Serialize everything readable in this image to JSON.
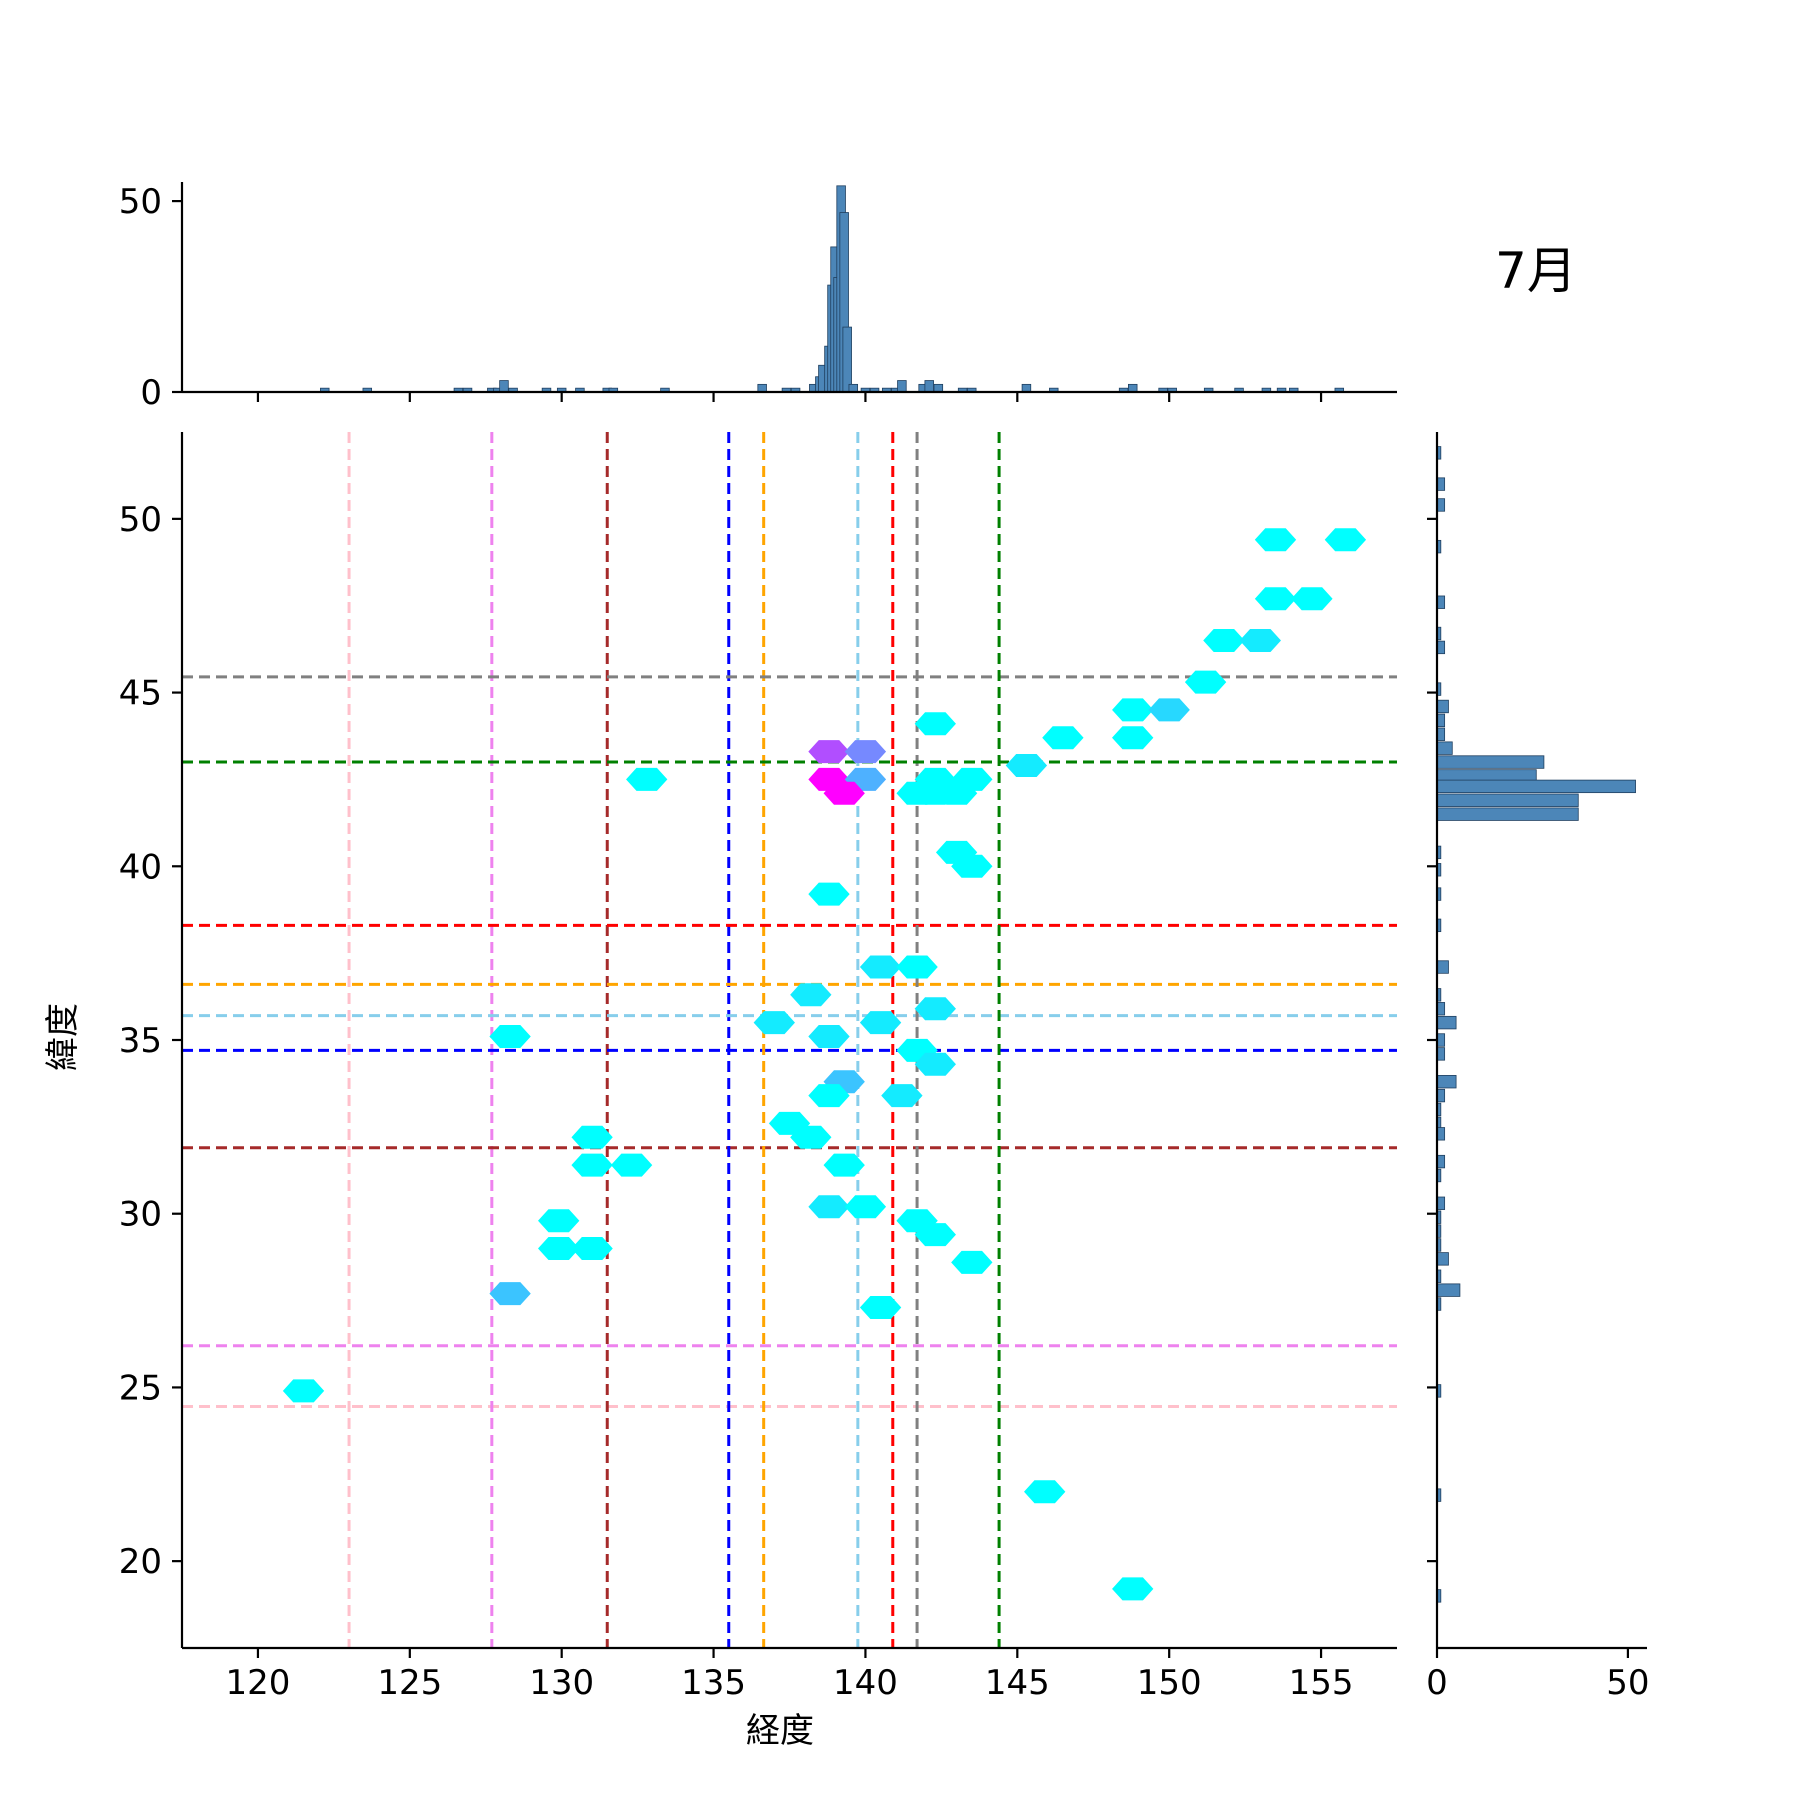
{
  "title": "7月",
  "chart_data": {
    "type": "hexbin-jointplot",
    "xlabel": "経度",
    "ylabel": "緯度",
    "xlim": [
      117.5,
      157.5
    ],
    "ylim": [
      17.5,
      52.5
    ],
    "xticks": [
      120,
      125,
      130,
      135,
      140,
      145,
      150,
      155
    ],
    "yticks": [
      20,
      25,
      30,
      35,
      40,
      45,
      50
    ],
    "grid": false,
    "reference_lines": [
      {
        "color": "pink",
        "lon": 123.0,
        "lat": 24.45
      },
      {
        "color": "violet",
        "lon": 127.7,
        "lat": 26.2
      },
      {
        "color": "brown",
        "lon": 131.5,
        "lat": 31.9
      },
      {
        "color": "blue",
        "lon": 135.5,
        "lat": 34.7
      },
      {
        "color": "orange",
        "lon": 136.65,
        "lat": 36.6
      },
      {
        "color": "skyblue",
        "lon": 139.75,
        "lat": 35.7
      },
      {
        "color": "red",
        "lon": 140.9,
        "lat": 38.3
      },
      {
        "color": "gray",
        "lon": 141.7,
        "lat": 45.45
      },
      {
        "color": "green",
        "lon": 144.4,
        "lat": 43.0
      }
    ],
    "hexbins": [
      {
        "x": 153.5,
        "y": 49.4,
        "count": 1
      },
      {
        "x": 155.8,
        "y": 49.4,
        "count": 1
      },
      {
        "x": 153.5,
        "y": 47.7,
        "count": 1
      },
      {
        "x": 154.7,
        "y": 47.7,
        "count": 1
      },
      {
        "x": 151.8,
        "y": 46.5,
        "count": 1
      },
      {
        "x": 153.0,
        "y": 46.5,
        "count": 2
      },
      {
        "x": 151.2,
        "y": 45.3,
        "count": 1
      },
      {
        "x": 148.8,
        "y": 44.5,
        "count": 1
      },
      {
        "x": 150.0,
        "y": 44.5,
        "count": 3
      },
      {
        "x": 142.3,
        "y": 44.1,
        "count": 1
      },
      {
        "x": 146.5,
        "y": 43.7,
        "count": 1
      },
      {
        "x": 148.8,
        "y": 43.7,
        "count": 1
      },
      {
        "x": 145.3,
        "y": 42.9,
        "count": 2
      },
      {
        "x": 138.8,
        "y": 43.3,
        "count": 10
      },
      {
        "x": 140.0,
        "y": 43.3,
        "count": 7
      },
      {
        "x": 132.8,
        "y": 42.5,
        "count": 1
      },
      {
        "x": 138.8,
        "y": 42.5,
        "count": 14
      },
      {
        "x": 140.0,
        "y": 42.5,
        "count": 5
      },
      {
        "x": 139.3,
        "y": 42.1,
        "count": 14
      },
      {
        "x": 141.7,
        "y": 42.1,
        "count": 1
      },
      {
        "x": 142.3,
        "y": 42.5,
        "count": 1
      },
      {
        "x": 143.5,
        "y": 42.5,
        "count": 1
      },
      {
        "x": 142.3,
        "y": 42.1,
        "count": 1
      },
      {
        "x": 143.0,
        "y": 42.1,
        "count": 1
      },
      {
        "x": 143.0,
        "y": 40.4,
        "count": 1
      },
      {
        "x": 143.5,
        "y": 40.0,
        "count": 1
      },
      {
        "x": 138.8,
        "y": 39.2,
        "count": 1
      },
      {
        "x": 140.5,
        "y": 37.1,
        "count": 2
      },
      {
        "x": 141.7,
        "y": 37.1,
        "count": 1
      },
      {
        "x": 138.2,
        "y": 36.3,
        "count": 2
      },
      {
        "x": 142.3,
        "y": 35.9,
        "count": 2
      },
      {
        "x": 137.0,
        "y": 35.5,
        "count": 2
      },
      {
        "x": 140.5,
        "y": 35.5,
        "count": 2
      },
      {
        "x": 128.3,
        "y": 35.1,
        "count": 1
      },
      {
        "x": 138.8,
        "y": 35.1,
        "count": 2
      },
      {
        "x": 141.7,
        "y": 34.7,
        "count": 1
      },
      {
        "x": 142.3,
        "y": 34.3,
        "count": 2
      },
      {
        "x": 139.3,
        "y": 33.8,
        "count": 4
      },
      {
        "x": 138.8,
        "y": 33.4,
        "count": 1
      },
      {
        "x": 141.2,
        "y": 33.4,
        "count": 2
      },
      {
        "x": 137.5,
        "y": 32.6,
        "count": 1
      },
      {
        "x": 138.2,
        "y": 32.2,
        "count": 1
      },
      {
        "x": 131.0,
        "y": 32.2,
        "count": 1
      },
      {
        "x": 131.0,
        "y": 31.4,
        "count": 1
      },
      {
        "x": 132.3,
        "y": 31.4,
        "count": 1
      },
      {
        "x": 139.3,
        "y": 31.4,
        "count": 1
      },
      {
        "x": 138.8,
        "y": 30.2,
        "count": 2
      },
      {
        "x": 140.0,
        "y": 30.2,
        "count": 1
      },
      {
        "x": 129.9,
        "y": 29.8,
        "count": 1
      },
      {
        "x": 141.7,
        "y": 29.8,
        "count": 1
      },
      {
        "x": 129.9,
        "y": 29.0,
        "count": 1
      },
      {
        "x": 131.0,
        "y": 29.0,
        "count": 1
      },
      {
        "x": 142.3,
        "y": 29.4,
        "count": 1
      },
      {
        "x": 143.5,
        "y": 28.6,
        "count": 1
      },
      {
        "x": 128.3,
        "y": 27.7,
        "count": 4
      },
      {
        "x": 140.5,
        "y": 27.3,
        "count": 1
      },
      {
        "x": 121.5,
        "y": 24.9,
        "count": 1
      },
      {
        "x": 145.9,
        "y": 22.0,
        "count": 1
      },
      {
        "x": 148.8,
        "y": 19.2,
        "count": 1
      }
    ],
    "top_marginal": {
      "ylim": [
        0,
        55
      ],
      "yticks": [
        0,
        50
      ],
      "bars": [
        {
          "x": 122.2,
          "count": 1
        },
        {
          "x": 123.6,
          "count": 1
        },
        {
          "x": 126.6,
          "count": 1
        },
        {
          "x": 126.9,
          "count": 1
        },
        {
          "x": 127.7,
          "count": 1
        },
        {
          "x": 127.9,
          "count": 1
        },
        {
          "x": 128.1,
          "count": 3
        },
        {
          "x": 128.4,
          "count": 1
        },
        {
          "x": 129.5,
          "count": 1
        },
        {
          "x": 130.0,
          "count": 1
        },
        {
          "x": 130.6,
          "count": 1
        },
        {
          "x": 131.5,
          "count": 1
        },
        {
          "x": 131.7,
          "count": 1
        },
        {
          "x": 133.4,
          "count": 1
        },
        {
          "x": 136.6,
          "count": 2
        },
        {
          "x": 137.4,
          "count": 1
        },
        {
          "x": 137.7,
          "count": 1
        },
        {
          "x": 138.3,
          "count": 2
        },
        {
          "x": 138.5,
          "count": 4
        },
        {
          "x": 138.6,
          "count": 7
        },
        {
          "x": 138.8,
          "count": 12
        },
        {
          "x": 138.9,
          "count": 28
        },
        {
          "x": 139.0,
          "count": 38
        },
        {
          "x": 139.1,
          "count": 30
        },
        {
          "x": 139.2,
          "count": 54
        },
        {
          "x": 139.3,
          "count": 47
        },
        {
          "x": 139.4,
          "count": 17
        },
        {
          "x": 139.6,
          "count": 2
        },
        {
          "x": 140.0,
          "count": 1
        },
        {
          "x": 140.3,
          "count": 1
        },
        {
          "x": 140.7,
          "count": 1
        },
        {
          "x": 141.0,
          "count": 1
        },
        {
          "x": 141.2,
          "count": 3
        },
        {
          "x": 141.9,
          "count": 2
        },
        {
          "x": 142.1,
          "count": 3
        },
        {
          "x": 142.4,
          "count": 2
        },
        {
          "x": 143.2,
          "count": 1
        },
        {
          "x": 143.5,
          "count": 1
        },
        {
          "x": 145.3,
          "count": 2
        },
        {
          "x": 146.2,
          "count": 1
        },
        {
          "x": 148.5,
          "count": 1
        },
        {
          "x": 148.8,
          "count": 2
        },
        {
          "x": 149.8,
          "count": 1
        },
        {
          "x": 150.1,
          "count": 1
        },
        {
          "x": 151.3,
          "count": 1
        },
        {
          "x": 152.3,
          "count": 1
        },
        {
          "x": 153.2,
          "count": 1
        },
        {
          "x": 153.7,
          "count": 1
        },
        {
          "x": 154.1,
          "count": 1
        },
        {
          "x": 155.6,
          "count": 1
        }
      ]
    },
    "right_marginal": {
      "xlim": [
        0,
        55
      ],
      "xticks": [
        0,
        50
      ],
      "bars": [
        {
          "y": 51.9,
          "count": 1
        },
        {
          "y": 51.0,
          "count": 2
        },
        {
          "y": 50.4,
          "count": 2
        },
        {
          "y": 49.2,
          "count": 1
        },
        {
          "y": 47.6,
          "count": 2
        },
        {
          "y": 46.7,
          "count": 1
        },
        {
          "y": 46.3,
          "count": 2
        },
        {
          "y": 45.1,
          "count": 1
        },
        {
          "y": 44.6,
          "count": 3
        },
        {
          "y": 44.2,
          "count": 2
        },
        {
          "y": 43.8,
          "count": 2
        },
        {
          "y": 43.4,
          "count": 4
        },
        {
          "y": 43.0,
          "count": 28
        },
        {
          "y": 42.6,
          "count": 26
        },
        {
          "y": 42.3,
          "count": 52
        },
        {
          "y": 41.9,
          "count": 37
        },
        {
          "y": 41.5,
          "count": 37
        },
        {
          "y": 40.4,
          "count": 1
        },
        {
          "y": 39.9,
          "count": 1
        },
        {
          "y": 39.2,
          "count": 1
        },
        {
          "y": 38.3,
          "count": 1
        },
        {
          "y": 37.1,
          "count": 3
        },
        {
          "y": 36.3,
          "count": 1
        },
        {
          "y": 35.9,
          "count": 2
        },
        {
          "y": 35.5,
          "count": 5
        },
        {
          "y": 35.0,
          "count": 2
        },
        {
          "y": 34.6,
          "count": 2
        },
        {
          "y": 33.8,
          "count": 5
        },
        {
          "y": 33.4,
          "count": 2
        },
        {
          "y": 33.0,
          "count": 1
        },
        {
          "y": 32.6,
          "count": 1
        },
        {
          "y": 32.3,
          "count": 2
        },
        {
          "y": 31.5,
          "count": 2
        },
        {
          "y": 31.1,
          "count": 1
        },
        {
          "y": 30.3,
          "count": 2
        },
        {
          "y": 29.9,
          "count": 1
        },
        {
          "y": 29.5,
          "count": 1
        },
        {
          "y": 29.1,
          "count": 1
        },
        {
          "y": 28.7,
          "count": 3
        },
        {
          "y": 28.2,
          "count": 1
        },
        {
          "y": 27.8,
          "count": 6
        },
        {
          "y": 27.4,
          "count": 1
        },
        {
          "y": 24.9,
          "count": 1
        },
        {
          "y": 21.9,
          "count": 1
        },
        {
          "y": 19.0,
          "count": 1
        }
      ]
    }
  },
  "colors": {
    "hex_low": "#00ffff",
    "hex_high": "#ff00ff",
    "hist_bar": "#4c86b8",
    "pink": "#ffc0cb",
    "violet": "#ee82ee",
    "brown": "#a52a2a",
    "blue": "#0000ff",
    "orange": "#ffa500",
    "skyblue": "#87ceeb",
    "red": "#ff0000",
    "gray": "#808080",
    "green": "#008000"
  }
}
